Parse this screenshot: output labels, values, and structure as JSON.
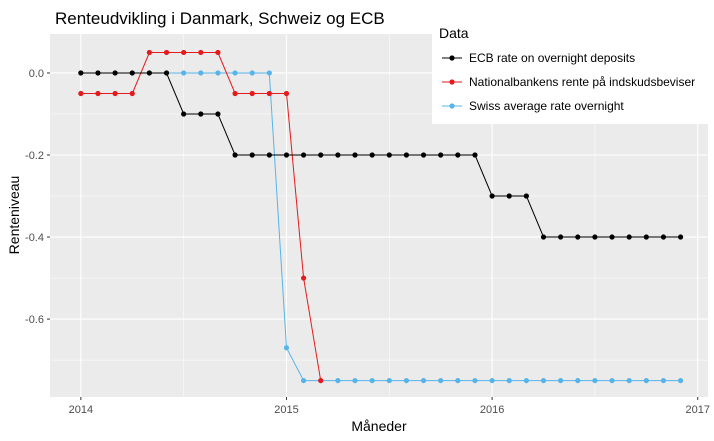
{
  "chart_data": {
    "type": "line",
    "title": "Renteudvikling i Danmark, Schweiz og ECB",
    "xlabel": "Måneder",
    "ylabel": "Renteniveau",
    "xlim": [
      2013.85,
      2017.05
    ],
    "ylim": [
      -0.79,
      0.095
    ],
    "x_ticks": [
      2014,
      2015,
      2016,
      2017
    ],
    "x_tick_labels": [
      "2014",
      "2015",
      "2016",
      "2017"
    ],
    "y_ticks": [
      0.0,
      -0.2,
      -0.4,
      -0.6
    ],
    "y_tick_labels": [
      "0.0",
      "-0.2",
      "-0.4",
      "-0.6"
    ],
    "legend": {
      "title": "Data",
      "position": "top-right"
    },
    "series": [
      {
        "name": "ECB rate on overnight deposits",
        "color": "#000000",
        "x": [
          2014.0,
          2014.0833,
          2014.1667,
          2014.25,
          2014.3333,
          2014.4167,
          2014.5,
          2014.5833,
          2014.6667,
          2014.75,
          2014.8333,
          2014.9167,
          2015.0,
          2015.0833,
          2015.1667,
          2015.25,
          2015.3333,
          2015.4167,
          2015.5,
          2015.5833,
          2015.6667,
          2015.75,
          2015.8333,
          2015.9167,
          2016.0,
          2016.0833,
          2016.1667,
          2016.25,
          2016.3333,
          2016.4167,
          2016.5,
          2016.5833,
          2016.6667,
          2016.75,
          2016.8333,
          2016.9167
        ],
        "y": [
          0.0,
          0.0,
          0.0,
          0.0,
          0.0,
          0.0,
          -0.1,
          -0.1,
          -0.1,
          -0.2,
          -0.2,
          -0.2,
          -0.2,
          -0.2,
          -0.2,
          -0.2,
          -0.2,
          -0.2,
          -0.2,
          -0.2,
          -0.2,
          -0.2,
          -0.2,
          -0.2,
          -0.3,
          -0.3,
          -0.3,
          -0.4,
          -0.4,
          -0.4,
          -0.4,
          -0.4,
          -0.4,
          -0.4,
          -0.4,
          -0.4
        ]
      },
      {
        "name": "Nationalbankens rente på indskudsbeviser",
        "color": "#e41a1c",
        "x": [
          2014.0,
          2014.0833,
          2014.1667,
          2014.25,
          2014.3333,
          2014.4167,
          2014.5,
          2014.5833,
          2014.6667,
          2014.75,
          2014.8333,
          2014.9167,
          2015.0,
          2015.0833,
          2015.1667
        ],
        "y": [
          -0.05,
          -0.05,
          -0.05,
          -0.05,
          0.05,
          0.05,
          0.05,
          0.05,
          0.05,
          -0.05,
          -0.05,
          -0.05,
          -0.05,
          -0.5,
          -0.75
        ]
      },
      {
        "name": "Swiss average rate overnight",
        "color": "#56b4e9",
        "x": [
          2014.0,
          2014.0833,
          2014.1667,
          2014.25,
          2014.3333,
          2014.4167,
          2014.5,
          2014.5833,
          2014.6667,
          2014.75,
          2014.8333,
          2014.9167,
          2015.0,
          2015.0833,
          2015.1667,
          2015.25,
          2015.3333,
          2015.4167,
          2015.5,
          2015.5833,
          2015.6667,
          2015.75,
          2015.8333,
          2015.9167,
          2016.0,
          2016.0833,
          2016.1667,
          2016.25,
          2016.3333,
          2016.4167,
          2016.5,
          2016.5833,
          2016.6667,
          2016.75,
          2016.8333,
          2016.9167
        ],
        "y": [
          0.0,
          0.0,
          0.0,
          0.0,
          0.0,
          0.0,
          0.0,
          0.0,
          0.0,
          0.0,
          0.0,
          0.0,
          -0.67,
          -0.75,
          -0.75,
          -0.75,
          -0.75,
          -0.75,
          -0.75,
          -0.75,
          -0.75,
          -0.75,
          -0.75,
          -0.75,
          -0.75,
          -0.75,
          -0.75,
          -0.75,
          -0.75,
          -0.75,
          -0.75,
          -0.75,
          -0.75,
          -0.75,
          -0.75,
          -0.75
        ]
      }
    ]
  }
}
